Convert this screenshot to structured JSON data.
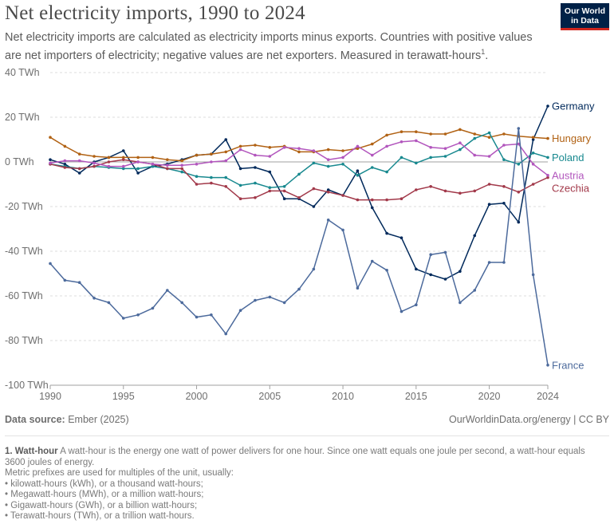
{
  "header": {
    "title": "Net electricity imports, 1990 to 2024",
    "subtitle": "Net electricity imports are calculated as electricity imports minus exports. Countries with positive values are net importers of electricity; negative values are net exporters. Measured in  terawatt-hours",
    "subtitle_ref": "1",
    "logo_line1": "Our World",
    "logo_line2": "in Data"
  },
  "footer": {
    "source_label": "Data source:",
    "source_value": "Ember (2025)",
    "license": "OurWorldinData.org/energy | CC BY"
  },
  "notes": {
    "heading": "1. Watt-hour",
    "definition": "A watt-hour is the energy one watt of power delivers for one hour. Since one watt equals one joule per second, a watt-hour equals 3600 joules of energy.",
    "intro": "Metric prefixes are used for multiples of the unit, usually:",
    "items": [
      "kilowatt-hours (kWh), or a thousand watt-hours;",
      "Megawatt-hours (MWh), or a million watt-hours;",
      "Gigawatt-hours (GWh), or a billion watt-hours;",
      "Terawatt-hours (TWh), or a trillion watt-hours."
    ]
  },
  "chart_data": {
    "type": "line",
    "title": "Net electricity imports, 1990 to 2024",
    "xlim": [
      1990,
      2024
    ],
    "ylim": [
      -100,
      40
    ],
    "x_ticks": [
      1990,
      1995,
      2000,
      2005,
      2010,
      2015,
      2020,
      2024
    ],
    "y_ticks": [
      40,
      20,
      0,
      -20,
      -40,
      -60,
      -80,
      -100
    ],
    "y_tick_labels": [
      "40 TWh",
      "20 TWh",
      "0 TWh",
      "-20 TWh",
      "-40 TWh",
      "-60 TWh",
      "-80 TWh",
      "-100 TWh"
    ],
    "grid": "horizontal dashed",
    "legend": "line-end labels",
    "x": [
      1990,
      1991,
      1992,
      1993,
      1994,
      1995,
      1996,
      1997,
      1998,
      1999,
      2000,
      2001,
      2002,
      2003,
      2004,
      2005,
      2006,
      2007,
      2008,
      2009,
      2010,
      2011,
      2012,
      2013,
      2014,
      2015,
      2016,
      2017,
      2018,
      2019,
      2020,
      2021,
      2022,
      2023,
      2024
    ],
    "series": [
      {
        "name": "Germany",
        "color": "#00295b",
        "values": [
          1,
          -1,
          -5,
          0,
          2,
          5,
          -5,
          -2,
          -1,
          1,
          3,
          3.5,
          10,
          -3,
          -2.5,
          -4.5,
          -16.5,
          -16.5,
          -20,
          -12.5,
          -15,
          -4,
          -20.5,
          -32,
          -34,
          -48,
          -50.5,
          -52.5,
          -49,
          -33,
          -19,
          -18.5,
          -27,
          10,
          25
        ]
      },
      {
        "name": "Hungary",
        "color": "#b16214",
        "values": [
          11,
          7,
          3.5,
          2.5,
          2,
          2,
          2,
          2,
          1,
          0.5,
          3,
          3.5,
          4.5,
          7,
          7.5,
          6.5,
          7,
          4.5,
          4.5,
          5.5,
          5,
          6,
          8,
          12,
          13.5,
          13.5,
          12.5,
          12.5,
          14.5,
          12.5,
          11,
          12.5,
          11.5,
          11,
          10.5
        ]
      },
      {
        "name": "Poland",
        "color": "#18898f",
        "values": [
          -1,
          -2,
          -3,
          -2,
          -2.5,
          -3,
          -3,
          -2,
          -3,
          -4.5,
          -6.5,
          -7,
          -7,
          -10.5,
          -9.5,
          -11.5,
          -11,
          -5.5,
          -0.5,
          -2,
          -1,
          -6,
          -2.5,
          -4.5,
          2,
          -0.5,
          2,
          2.5,
          5.5,
          10.5,
          13,
          1,
          -1,
          4,
          2
        ]
      },
      {
        "name": "Czechia",
        "color": "#a2394a",
        "values": [
          -1,
          -2.5,
          -3,
          -2,
          0,
          1,
          0,
          -1,
          -3,
          -3,
          -10,
          -9.5,
          -11,
          -16.5,
          -16,
          -13,
          -13,
          -16,
          -12,
          -13.5,
          -15,
          -17,
          -17,
          -17,
          -16.5,
          -12.5,
          -11,
          -13,
          -14,
          -13,
          -10,
          -11,
          -13.5,
          -10,
          -7
        ]
      },
      {
        "name": "Austria",
        "color": "#b256bd",
        "values": [
          -0.5,
          0.5,
          0.5,
          -0.5,
          -2,
          -2,
          0,
          -1,
          -1.5,
          -1.5,
          -1,
          0,
          0.5,
          5.5,
          3,
          2.5,
          6.5,
          6,
          5,
          1,
          2,
          7,
          3,
          7,
          9,
          9.5,
          6.5,
          6,
          8.5,
          3,
          2.5,
          7.5,
          8,
          -1,
          -6
        ]
      },
      {
        "name": "France",
        "color": "#4c6a9c",
        "values": [
          -45.5,
          -53,
          -54,
          -61,
          -63,
          -70,
          -68.5,
          -65.5,
          -57.5,
          -63,
          -69.5,
          -68.5,
          -77,
          -66.5,
          -62,
          -60.5,
          -63,
          -57,
          -48,
          -26,
          -30.5,
          -56.5,
          -44.5,
          -48.5,
          -67,
          -64,
          -41.5,
          -40.5,
          -63,
          -57.5,
          -45,
          -45,
          15,
          -50.5,
          -91
        ]
      }
    ]
  }
}
